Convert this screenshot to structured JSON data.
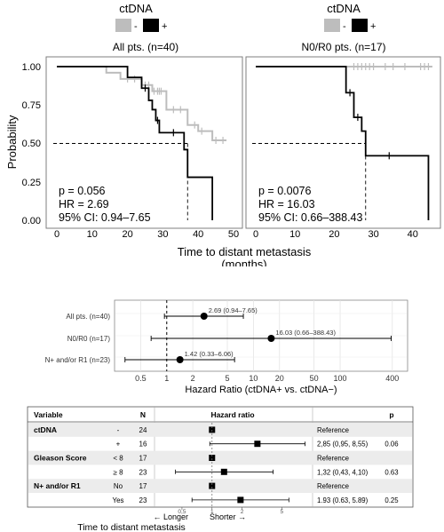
{
  "chart_data": [
    {
      "type": "line",
      "subtype": "kaplan-meier",
      "legend_title": "ctDNA",
      "legend_entries": [
        {
          "label": "-",
          "color": "#bdbdbd"
        },
        {
          "label": "+",
          "color": "#000000"
        }
      ],
      "ylabel": "Probability",
      "xlabel": "Time to distant metastasis\n(months)",
      "xlabel_line1": "Time to distant metastasis",
      "xlabel_line2": "(months)",
      "ylim": [
        0,
        1
      ],
      "yticks": [
        "0.00",
        "0.25",
        "0.50",
        "0.75",
        "1.00"
      ],
      "panels": [
        {
          "title": "All pts. (n=40)",
          "xlim": [
            0,
            50
          ],
          "xticks": [
            "0",
            "10",
            "20",
            "30",
            "40",
            "50"
          ],
          "stats": {
            "p": "p = 0.056",
            "hr": "HR = 2.69",
            "ci": "95% CI: 0.94–7.65"
          },
          "median_time": 37,
          "series": [
            {
              "name": "-",
              "color": "#bdbdbd",
              "steps": [
                [
                  0,
                  1.0
                ],
                [
                  14,
                  0.96
                ],
                [
                  18,
                  0.92
                ],
                [
                  24,
                  0.88
                ],
                [
                  27,
                  0.84
                ],
                [
                  31,
                  0.72
                ],
                [
                  37,
                  0.62
                ],
                [
                  40,
                  0.58
                ],
                [
                  44,
                  0.52
                ],
                [
                  48,
                  0.52
                ]
              ],
              "censored": [
                [
                  20,
                  0.92
                ],
                [
                  22,
                  0.92
                ],
                [
                  25,
                  0.88
                ],
                [
                  26,
                  0.88
                ],
                [
                  27.5,
                  0.84
                ],
                [
                  28.5,
                  0.84
                ],
                [
                  29,
                  0.84
                ],
                [
                  29.5,
                  0.84
                ],
                [
                  33,
                  0.72
                ],
                [
                  35,
                  0.72
                ],
                [
                  39,
                  0.62
                ],
                [
                  41,
                  0.58
                ],
                [
                  45,
                  0.52
                ],
                [
                  47,
                  0.52
                ]
              ]
            },
            {
              "name": "+",
              "color": "#000000",
              "steps": [
                [
                  0,
                  1.0
                ],
                [
                  20,
                  0.93
                ],
                [
                  24,
                  0.86
                ],
                [
                  26,
                  0.78
                ],
                [
                  27,
                  0.72
                ],
                [
                  28,
                  0.65
                ],
                [
                  29,
                  0.57
                ],
                [
                  36,
                  0.46
                ],
                [
                  37,
                  0.28
                ],
                [
                  44,
                  0.0
                ]
              ],
              "censored": [
                [
                  25,
                  0.86
                ],
                [
                  28.5,
                  0.65
                ],
                [
                  33,
                  0.57
                ]
              ]
            }
          ]
        },
        {
          "title": "N0/R0 pts. (n=17)",
          "xlim": [
            0,
            45
          ],
          "xticks": [
            "0",
            "10",
            "20",
            "30",
            "40"
          ],
          "stats": {
            "p": "p = 0.0076",
            "hr": "HR = 16.03",
            "ci": "95% CI: 0.66–388.43"
          },
          "median_time": 28,
          "series": [
            {
              "name": "-",
              "color": "#bdbdbd",
              "steps": [
                [
                  0,
                  1.0
                ],
                [
                  45,
                  1.0
                ]
              ],
              "censored": [
                [
                  25,
                  1.0
                ],
                [
                  26,
                  1.0
                ],
                [
                  27,
                  1.0
                ],
                [
                  28,
                  1.0
                ],
                [
                  29,
                  1.0
                ],
                [
                  30,
                  1.0
                ],
                [
                  33,
                  1.0
                ],
                [
                  35,
                  1.0
                ],
                [
                  38,
                  1.0
                ],
                [
                  42,
                  1.0
                ],
                [
                  43,
                  1.0
                ],
                [
                  44,
                  1.0
                ]
              ]
            },
            {
              "name": "+",
              "color": "#000000",
              "steps": [
                [
                  0,
                  1.0
                ],
                [
                  23,
                  0.83
                ],
                [
                  25,
                  0.67
                ],
                [
                  27,
                  0.58
                ],
                [
                  28,
                  0.42
                ],
                [
                  44,
                  0.0
                ]
              ],
              "censored": [
                [
                  24,
                  0.83
                ],
                [
                  26,
                  0.67
                ],
                [
                  34,
                  0.42
                ]
              ]
            }
          ]
        }
      ]
    },
    {
      "type": "scatter",
      "subtype": "forest-plot",
      "xlabel": "Hazard Ratio (ctDNA+ vs. ctDNA−)",
      "xscale": "log",
      "xlim": [
        0.25,
        600
      ],
      "xticks": [
        0.5,
        1,
        2,
        5,
        10,
        20,
        50,
        100,
        400
      ],
      "xtick_labels": [
        "0.5",
        "1",
        "2",
        "5",
        "10",
        "20",
        "50",
        "100",
        "400"
      ],
      "grid": true,
      "rows": [
        {
          "label": "All pts. (n=40)",
          "hr": 2.69,
          "lo": 0.94,
          "hi": 7.65,
          "text": "2.69 (0.94–7.65)"
        },
        {
          "label": "N0/R0 (n=17)",
          "hr": 16.03,
          "lo": 0.66,
          "hi": 388.43,
          "text": "16.03 (0.66–388.43)"
        },
        {
          "label": "N+ and/or R1 (n=23)",
          "hr": 1.42,
          "lo": 0.33,
          "hi": 6.06,
          "text": "1.42 (0.33–6.06)"
        }
      ]
    },
    {
      "type": "table",
      "subtype": "forest-table",
      "headers": {
        "variable": "Variable",
        "n": "N",
        "hr": "Hazard ratio",
        "p": "p"
      },
      "xscale": "log",
      "xlim": [
        0.3,
        9
      ],
      "xticks": [
        0.5,
        1,
        2,
        5
      ],
      "xtick_labels": [
        "0,5",
        "1",
        "2",
        "5"
      ],
      "arrow_left": "← Longer",
      "arrow_right": "Shorter →",
      "xlabel": "Time to distant metastasis",
      "rows": [
        {
          "variable": "ctDNA",
          "level": "-",
          "n": "24",
          "hr": 1,
          "lo": null,
          "hi": null,
          "text": "Reference",
          "p": "",
          "shade": true
        },
        {
          "variable": "",
          "level": "+",
          "n": "16",
          "hr": 2.85,
          "lo": 0.95,
          "hi": 8.55,
          "text": "2,85 (0,95, 8,55)",
          "p": "0.06",
          "shade": false
        },
        {
          "variable": "Gleason Score",
          "level": "< 8",
          "n": "17",
          "hr": 1,
          "lo": null,
          "hi": null,
          "text": "Reference",
          "p": "",
          "shade": true
        },
        {
          "variable": "",
          "level": "≥ 8",
          "n": "23",
          "hr": 1.32,
          "lo": 0.43,
          "hi": 4.1,
          "text": "1,32 (0,43, 4,10)",
          "p": "0.63",
          "shade": false
        },
        {
          "variable": "N+ and/or R1",
          "level": "No",
          "n": "17",
          "hr": 1,
          "lo": null,
          "hi": null,
          "text": "Reference",
          "p": "",
          "shade": true
        },
        {
          "variable": "",
          "level": "Yes",
          "n": "23",
          "hr": 1.93,
          "lo": 0.63,
          "hi": 5.89,
          "text": "1.93 (0.63, 5.89)",
          "p": "0.25",
          "shade": false
        }
      ]
    }
  ]
}
